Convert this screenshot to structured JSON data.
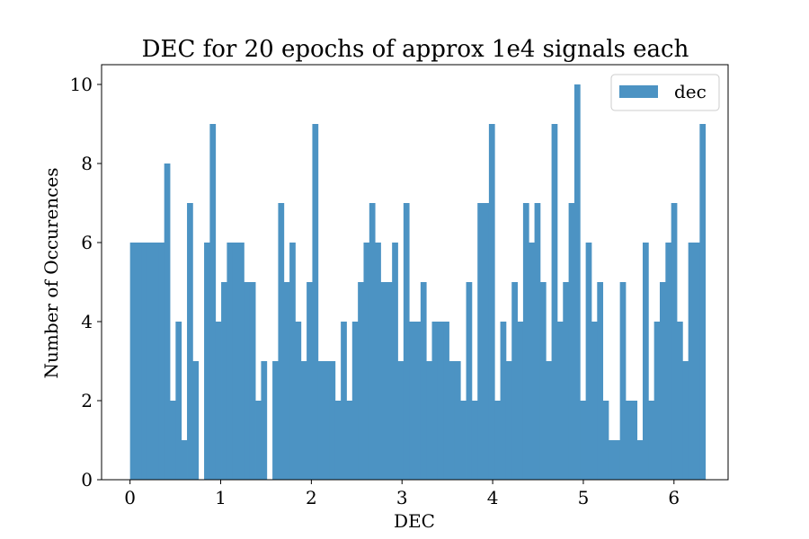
{
  "chart_data": {
    "type": "bar",
    "title": "DEC for 20 epochs of approx 1e4 signals each",
    "xlabel": "DEC",
    "ylabel": "Number of Occurences",
    "xlim": [
      -0.314,
      6.597
    ],
    "ylim": [
      0,
      10.5
    ],
    "xticks": [
      0,
      1,
      2,
      3,
      4,
      5,
      6
    ],
    "yticks": [
      0,
      2,
      4,
      6,
      8,
      10
    ],
    "bin_width": 0.062832,
    "bin_start": 0,
    "color": "#4c93c3",
    "grid": false,
    "legend": {
      "position": "top-right",
      "entries": [
        "dec"
      ]
    },
    "series": [
      {
        "name": "dec",
        "values": [
          6,
          6,
          6,
          6,
          6,
          6,
          8,
          2,
          4,
          1,
          7,
          3,
          0,
          6,
          9,
          4,
          5,
          6,
          6,
          6,
          5,
          5,
          2,
          3,
          0,
          3,
          7,
          5,
          6,
          4,
          3,
          5,
          9,
          3,
          3,
          3,
          2,
          4,
          2,
          4,
          5,
          6,
          7,
          6,
          5,
          5,
          6,
          3,
          7,
          4,
          4,
          5,
          3,
          4,
          4,
          4,
          3,
          3,
          2,
          5,
          2,
          7,
          7,
          9,
          2,
          4,
          3,
          5,
          4,
          7,
          6,
          7,
          5,
          3,
          9,
          4,
          5,
          7,
          10,
          2,
          6,
          4,
          5,
          2,
          1,
          1,
          5,
          2,
          2,
          1,
          6,
          2,
          4,
          5,
          6,
          7,
          4,
          3,
          6,
          6,
          9
        ]
      }
    ]
  }
}
